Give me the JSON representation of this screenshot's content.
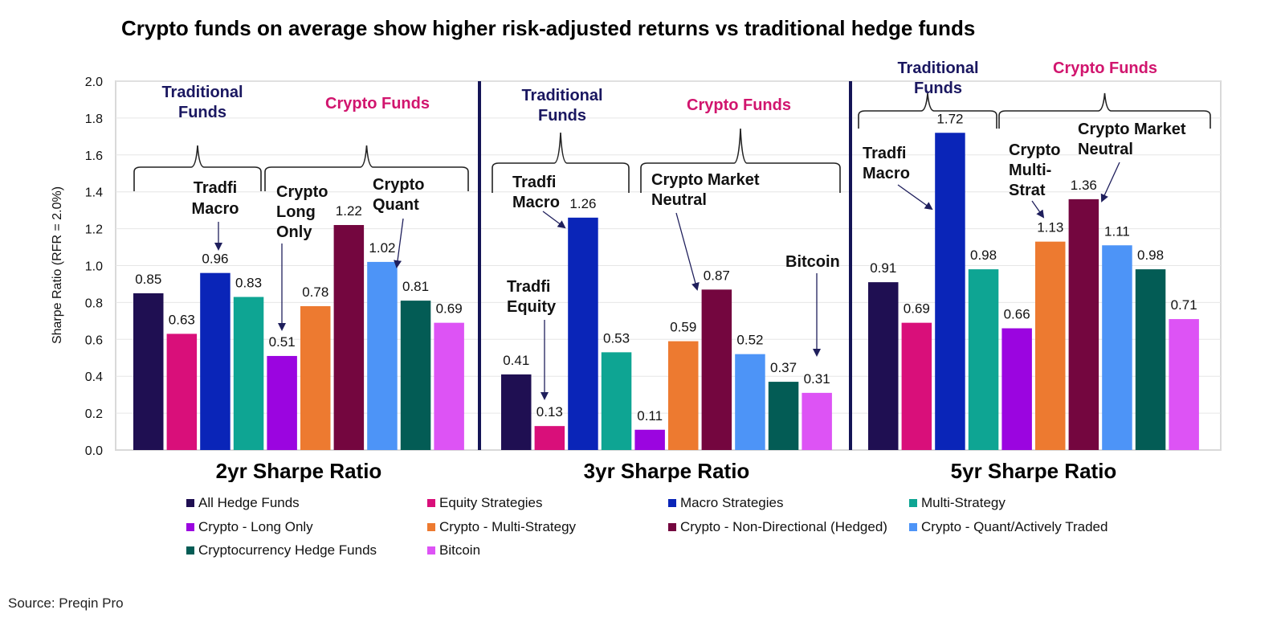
{
  "chart_data": {
    "type": "bar",
    "title": "Crypto funds on average show higher risk-adjusted returns vs traditional hedge funds",
    "ylabel": "Sharpe Ratio (RFR = 2.0%)",
    "ylim": [
      0,
      2.0
    ],
    "yticks": [
      "0.0",
      "0.2",
      "0.4",
      "0.6",
      "0.8",
      "1.0",
      "1.2",
      "1.4",
      "1.6",
      "1.8",
      "2.0"
    ],
    "ytick_values": [
      0,
      0.2,
      0.4,
      0.6,
      0.8,
      1.0,
      1.2,
      1.4,
      1.6,
      1.8,
      2.0
    ],
    "grid": true,
    "series_names": [
      "All Hedge Funds",
      "Equity Strategies",
      "Macro Strategies",
      "Multi-Strategy",
      "Crypto - Long Only",
      "Crypto - Multi-Strategy",
      "Crypto - Non-Directional (Hedged)",
      "Crypto - Quant/Actively Traded",
      "Cryptocurrency Hedge Funds",
      "Bitcoin"
    ],
    "series_colors": [
      "#1f0f52",
      "#d90f7a",
      "#0a25b8",
      "#0ea593",
      "#9b05e0",
      "#ed7a30",
      "#74063f",
      "#4d94f7",
      "#035c55",
      "#dd53f5"
    ],
    "panels": [
      {
        "name": "2yr Sharpe Ratio",
        "values": [
          0.85,
          0.63,
          0.96,
          0.83,
          0.51,
          0.78,
          1.22,
          1.02,
          0.81,
          0.69
        ],
        "labels": [
          "0.85",
          "0.63",
          "0.96",
          "0.83",
          "0.51",
          "0.78",
          "1.22",
          "1.02",
          "0.81",
          "0.69"
        ],
        "group_labels": [
          "Traditional Funds",
          "Crypto Funds"
        ],
        "annotations": [
          {
            "text": "Tradfi Macro",
            "target_bar": 2
          },
          {
            "text": "Crypto Long Only",
            "target_bar": 4
          },
          {
            "text": "Crypto Quant",
            "target_bar": 7
          }
        ]
      },
      {
        "name": "3yr Sharpe Ratio",
        "values": [
          0.41,
          0.13,
          1.26,
          0.53,
          0.11,
          0.59,
          0.87,
          0.52,
          0.37,
          0.31
        ],
        "labels": [
          "0.41",
          "0.13",
          "1.26",
          "0.53",
          "0.11",
          "0.59",
          "0.87",
          "0.52",
          "0.37",
          "0.31"
        ],
        "group_labels": [
          "Traditional Funds",
          "Crypto Funds"
        ],
        "annotations": [
          {
            "text": "Tradfi Macro",
            "target_bar": 2
          },
          {
            "text": "Tradfi Equity",
            "target_bar": 1
          },
          {
            "text": "Crypto Market Neutral",
            "target_bar": 6
          },
          {
            "text": "Bitcoin",
            "target_bar": 9
          }
        ]
      },
      {
        "name": "5yr Sharpe Ratio",
        "values": [
          0.91,
          0.69,
          1.72,
          0.98,
          0.66,
          1.13,
          1.36,
          1.11,
          0.98,
          0.71
        ],
        "labels": [
          "0.91",
          "0.69",
          "1.72",
          "0.98",
          "0.66",
          "1.13",
          "1.36",
          "1.11",
          "0.98",
          "0.71"
        ],
        "group_labels": [
          "Traditional Funds",
          "Crypto Funds"
        ],
        "annotations": [
          {
            "text": "Tradfi Macro",
            "target_bar": 2
          },
          {
            "text": "Crypto Multi-Strat",
            "target_bar": 5
          },
          {
            "text": "Crypto Market Neutral",
            "target_bar": 6
          }
        ]
      }
    ]
  },
  "source": "Source: Preqin Pro"
}
